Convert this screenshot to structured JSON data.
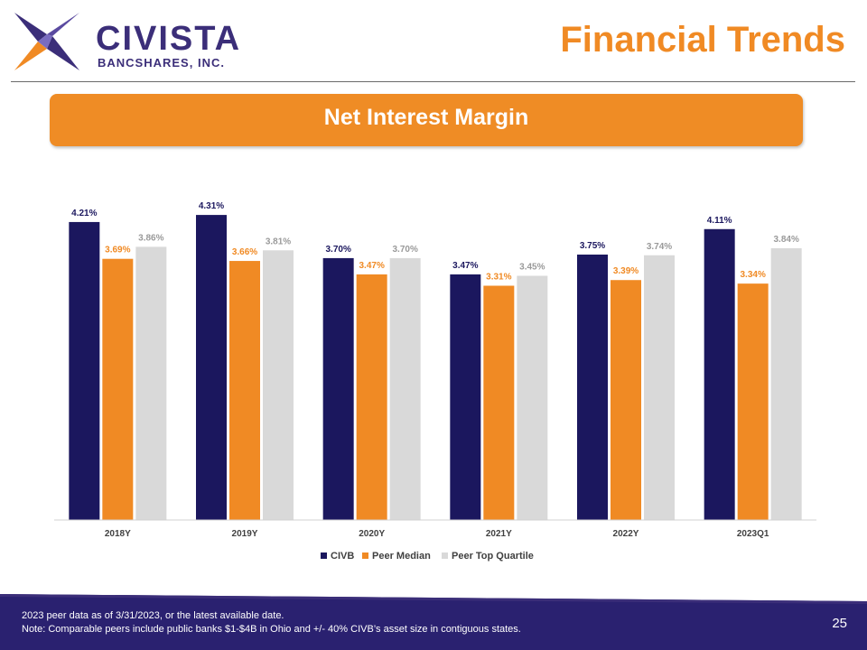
{
  "header": {
    "logo_name": "CIVISTA",
    "logo_subtitle": "BANCSHARES, INC.",
    "page_title": "Financial Trends"
  },
  "banner": {
    "title": "Net Interest Margin"
  },
  "colors": {
    "civb": "#1b175e",
    "peer_median": "#f08a24",
    "peer_top_quartile": "#d9d9d9",
    "accent": "#ef8c25"
  },
  "chart_data": {
    "type": "bar",
    "title": "Net Interest Margin",
    "categories": [
      "2018Y",
      "2019Y",
      "2020Y",
      "2021Y",
      "2022Y",
      "2023Q1"
    ],
    "series": [
      {
        "name": "CIVB",
        "values": [
          4.21,
          4.31,
          3.7,
          3.47,
          3.75,
          4.11
        ],
        "labels": [
          "4.21%",
          "4.31%",
          "3.70%",
          "3.47%",
          "3.75%",
          "4.11%"
        ]
      },
      {
        "name": "Peer Median",
        "values": [
          3.69,
          3.66,
          3.47,
          3.31,
          3.39,
          3.34
        ],
        "labels": [
          "3.69%",
          "3.66%",
          "3.47%",
          "3.31%",
          "3.39%",
          "3.34%"
        ]
      },
      {
        "name": "Peer Top Quartile",
        "values": [
          3.86,
          3.81,
          3.7,
          3.45,
          3.74,
          3.84
        ],
        "labels": [
          "3.86%",
          "3.81%",
          "3.70%",
          "3.45%",
          "3.74%",
          "3.84%"
        ]
      }
    ],
    "ylim": [
      0,
      4.5
    ],
    "legend": "bottom-center",
    "grid": false,
    "xlabel": "",
    "ylabel": ""
  },
  "footer": {
    "note_1": "2023 peer data as of  3/31/2023, or the latest available date.",
    "note_2": "Note: Comparable peers include public banks $1-$4B in Ohio and +/- 40% CIVB’s asset size in contiguous states.",
    "page_number": "25"
  }
}
